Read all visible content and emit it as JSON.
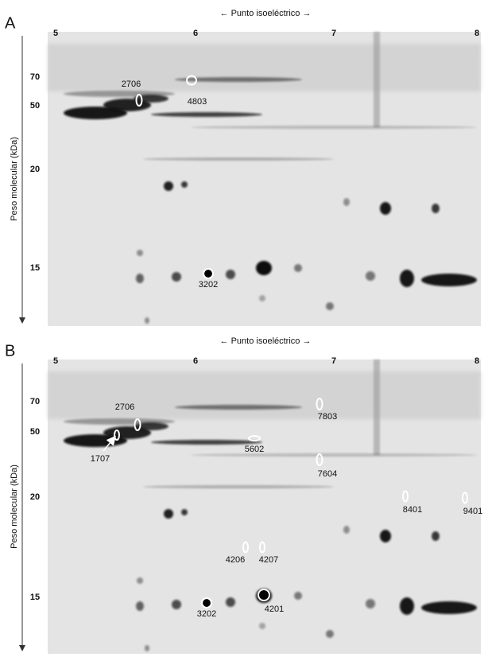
{
  "panels": [
    {
      "letter": "A",
      "x_axis_title": "← Punto isoeléctrico →",
      "x_ticks": [
        "5",
        "6",
        "7",
        "8"
      ],
      "y_axis_title": "Peso molecular (kDa)",
      "y_ticks": [
        "70",
        "50",
        "20",
        "15"
      ],
      "spots": [
        {
          "label": "2706"
        },
        {
          "label": "4803"
        },
        {
          "label": "3202"
        }
      ]
    },
    {
      "letter": "B",
      "x_axis_title": "← Punto isoeléctrico →",
      "x_ticks": [
        "5",
        "6",
        "7",
        "8"
      ],
      "y_axis_title": "Peso molecular (kDa)",
      "y_ticks": [
        "70",
        "50",
        "20",
        "15"
      ],
      "spots": [
        {
          "label": "2706"
        },
        {
          "label": "1707"
        },
        {
          "label": "5602"
        },
        {
          "label": "7803"
        },
        {
          "label": "7604"
        },
        {
          "label": "8401"
        },
        {
          "label": "9401"
        },
        {
          "label": "4206"
        },
        {
          "label": "4207"
        },
        {
          "label": "3202"
        },
        {
          "label": "4201"
        }
      ]
    }
  ]
}
